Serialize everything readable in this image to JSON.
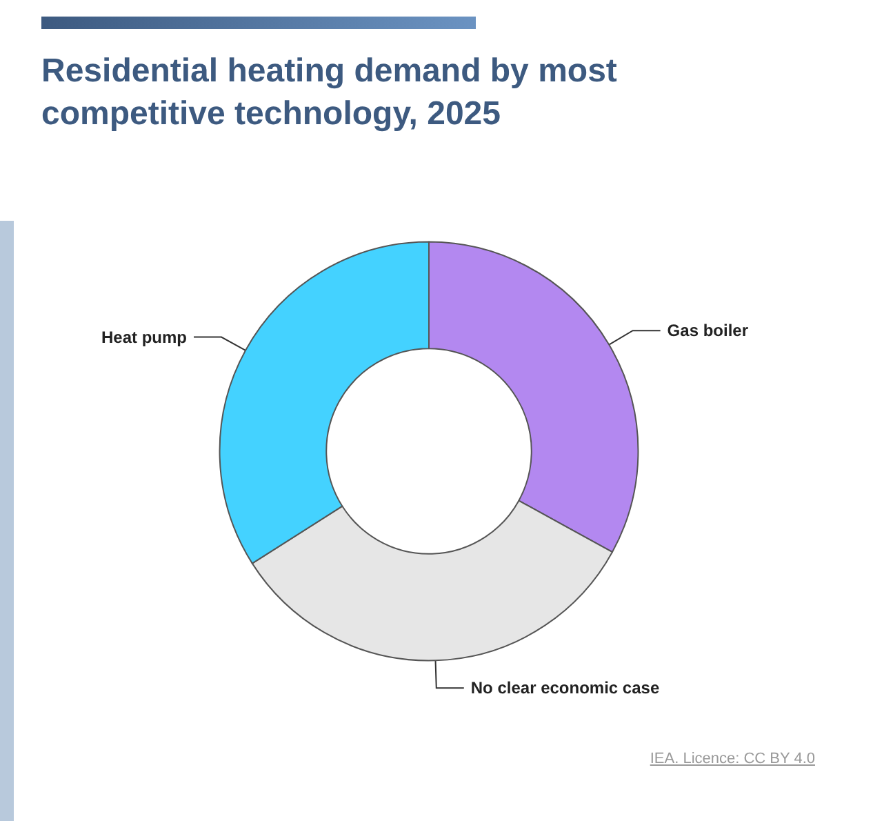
{
  "chart_data": {
    "type": "donut",
    "title": "Residential heating demand by most competitive technology, 2025",
    "categories": [
      "Gas boiler",
      "No clear economic case",
      "Heat pump"
    ],
    "values": [
      33,
      33,
      34
    ],
    "colors": [
      "#b388f0",
      "#e6e6e6",
      "#44d2ff"
    ],
    "annotations": [
      "IEA. Licence: CC BY 4.0"
    ]
  }
}
